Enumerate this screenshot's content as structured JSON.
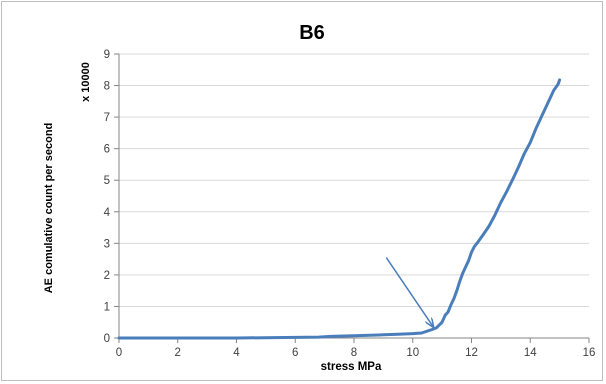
{
  "chart_data": {
    "type": "line",
    "title": "B6",
    "xlabel": "stress MPa",
    "ylabel": "AE comulative count per second",
    "y_multiplier_label": "x 10000",
    "xlim": [
      0,
      16
    ],
    "ylim": [
      0,
      9
    ],
    "x_ticks": [
      "0",
      "2",
      "4",
      "6",
      "8",
      "10",
      "12",
      "14",
      "16"
    ],
    "y_ticks": [
      "0",
      "1",
      "2",
      "3",
      "4",
      "5",
      "6",
      "7",
      "8",
      "9"
    ],
    "grid": "horizontal",
    "legend": "none",
    "line_color": "#4a7ebb",
    "axis_color": "#868686",
    "grid_color": "#d9d9d9",
    "series": [
      {
        "x": [
          0,
          2,
          4,
          6,
          6.8,
          7.2,
          8,
          9,
          9.5,
          10,
          10.3,
          10.6,
          10.8,
          11.0,
          11.1,
          11.2,
          11.3,
          11.4,
          11.5,
          11.6,
          11.7,
          11.8,
          11.9,
          12.0,
          12.1,
          12.2,
          12.4,
          12.6,
          12.8,
          13.0,
          13.2,
          13.4,
          13.6,
          13.8,
          14.0,
          14.2,
          14.4,
          14.6,
          14.8,
          14.95,
          15.0
        ],
        "y": [
          0,
          0,
          0,
          0.02,
          0.03,
          0.05,
          0.07,
          0.1,
          0.12,
          0.14,
          0.16,
          0.25,
          0.32,
          0.5,
          0.72,
          0.82,
          1.05,
          1.25,
          1.5,
          1.8,
          2.05,
          2.25,
          2.45,
          2.72,
          2.9,
          3.02,
          3.28,
          3.55,
          3.9,
          4.3,
          4.65,
          5.02,
          5.42,
          5.85,
          6.2,
          6.65,
          7.05,
          7.45,
          7.85,
          8.05,
          8.18
        ]
      }
    ],
    "annotation_arrow": {
      "from": [
        9.1,
        2.55
      ],
      "to": [
        10.7,
        0.35
      ]
    }
  }
}
